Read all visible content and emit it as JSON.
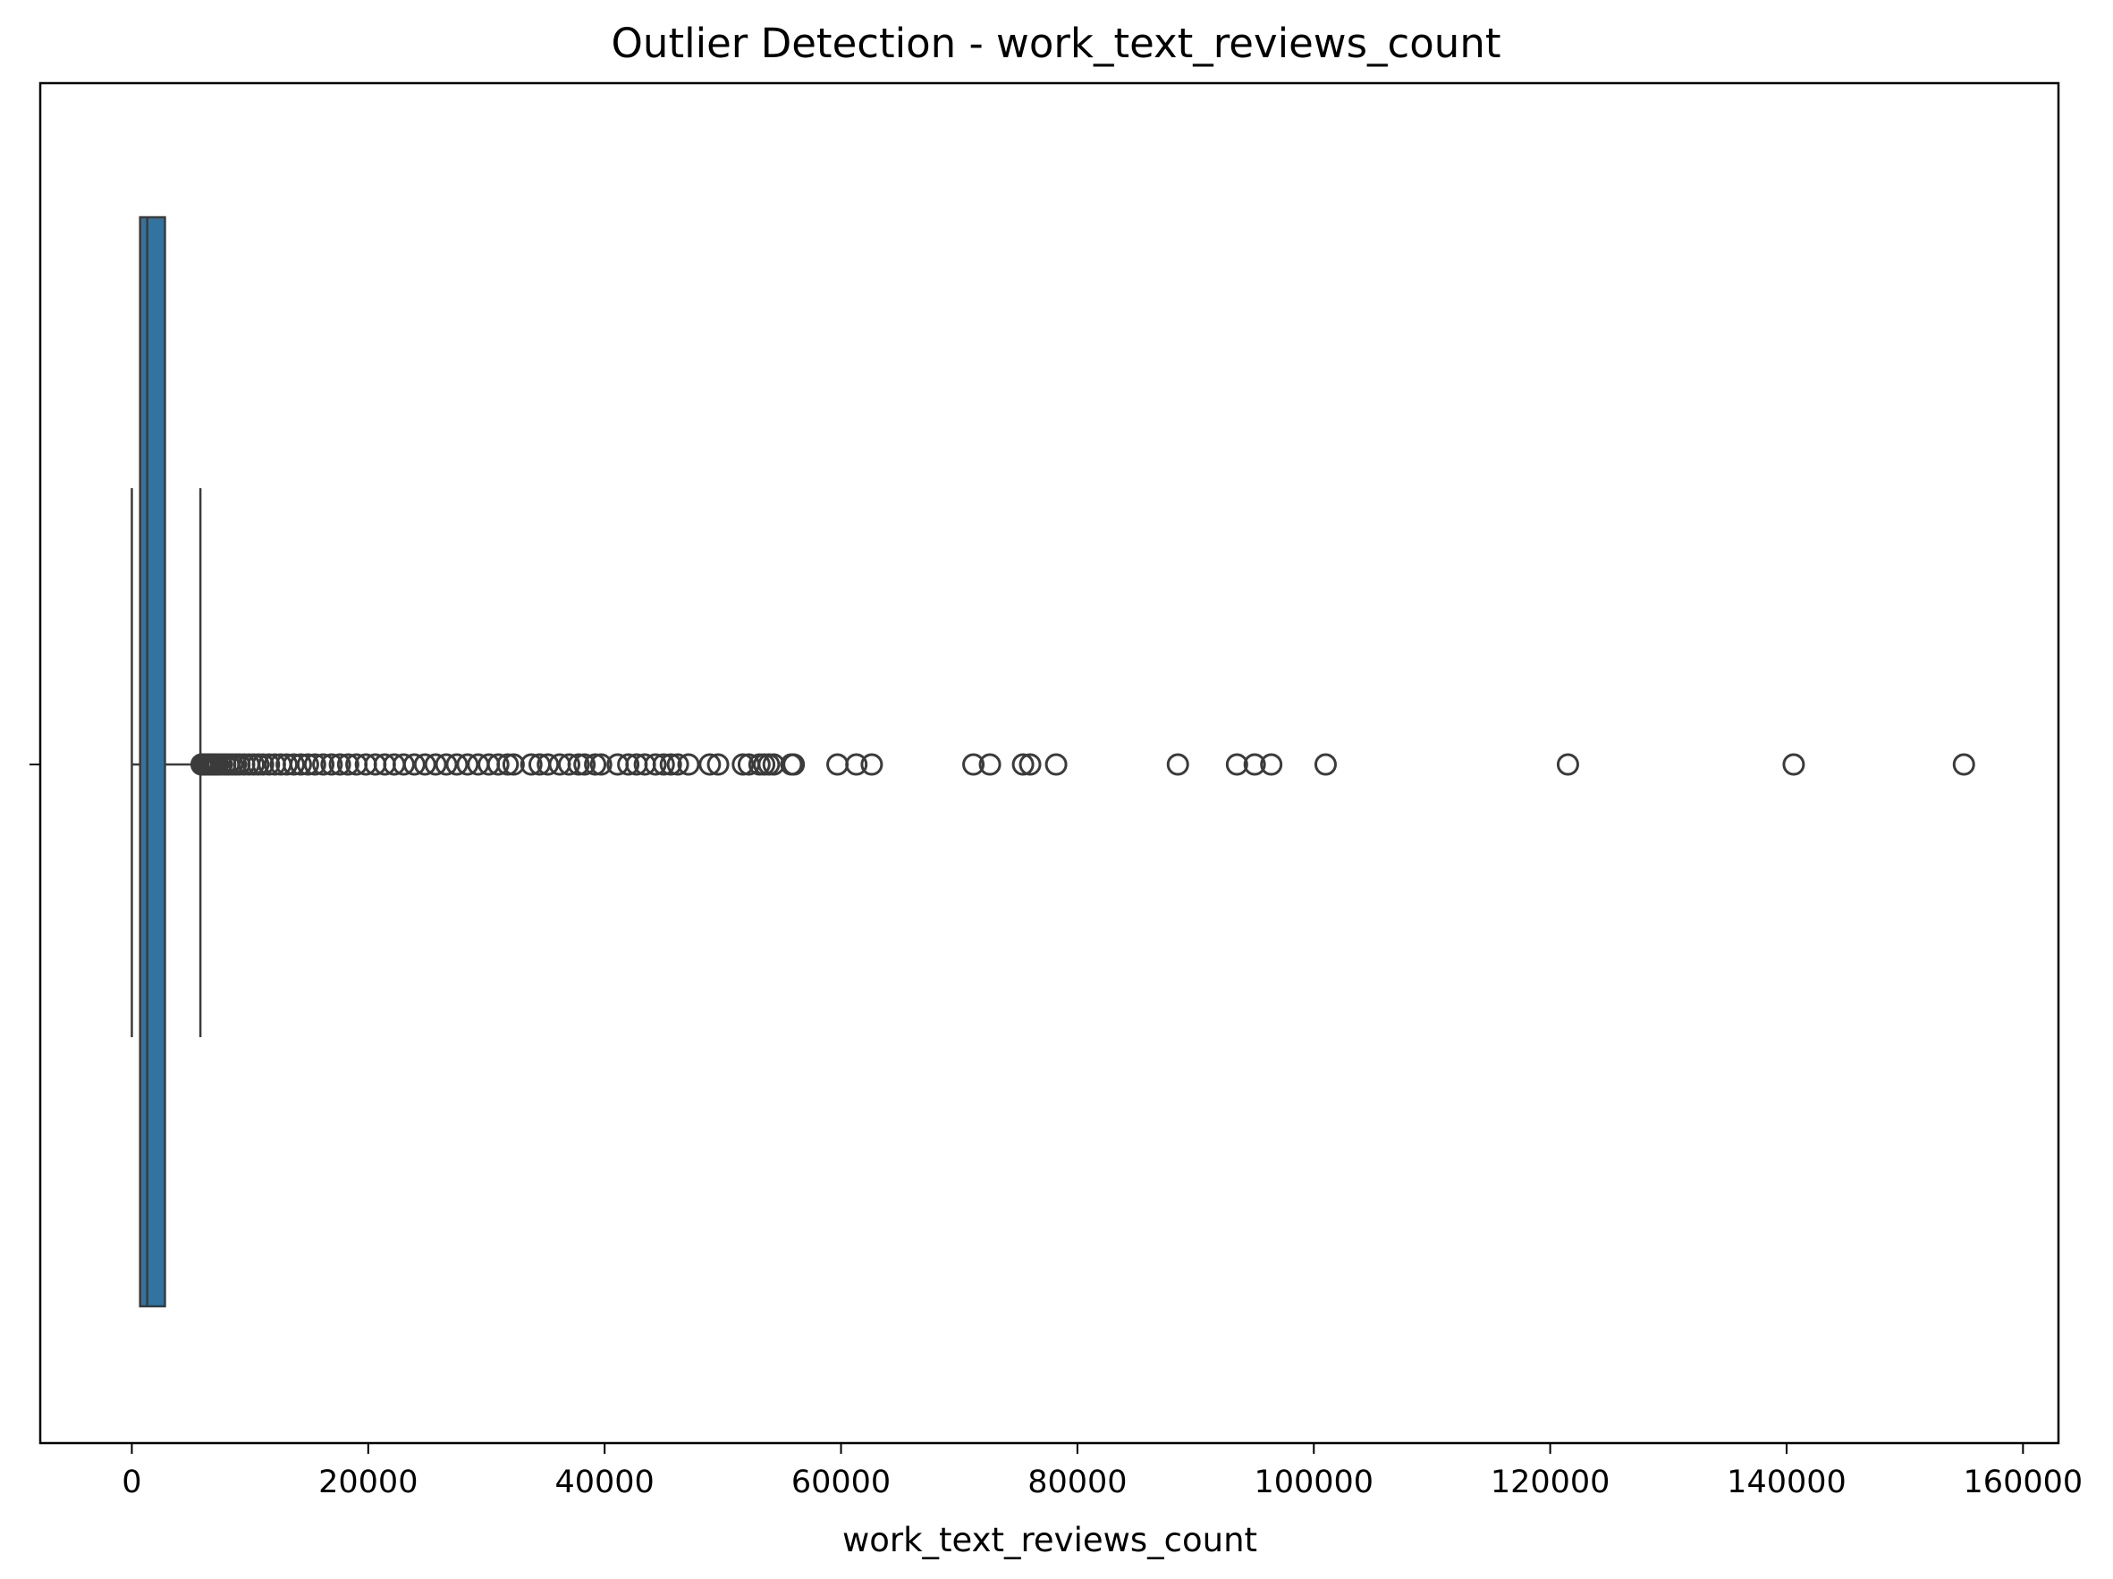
{
  "chart_data": {
    "type": "box",
    "title": "Outlier Detection - work_text_reviews_count",
    "xlabel": "work_text_reviews_count",
    "ylabel": "",
    "xlim": [
      -7750,
      163000
    ],
    "xticks": [
      0,
      20000,
      40000,
      60000,
      80000,
      100000,
      120000,
      140000,
      160000
    ],
    "xtick_labels": [
      "0",
      "20000",
      "40000",
      "60000",
      "80000",
      "100000",
      "120000",
      "140000",
      "160000"
    ],
    "grid": false,
    "orientation": "horizontal",
    "box": {
      "whisker_low": 0,
      "q1": 700,
      "median": 1300,
      "q3": 2800,
      "whisker_high": 5800,
      "color": "#3274a1",
      "edge_color": "#3b3b3b"
    },
    "outliers": [
      5900,
      6100,
      6300,
      6500,
      6700,
      6900,
      7100,
      7300,
      7600,
      7900,
      8200,
      8500,
      8800,
      9100,
      9500,
      9900,
      10300,
      10700,
      11100,
      11600,
      12100,
      12600,
      13100,
      13700,
      14300,
      14900,
      15500,
      16200,
      16900,
      17600,
      18300,
      19000,
      19800,
      20600,
      21400,
      22200,
      23000,
      23900,
      24800,
      25700,
      26600,
      27500,
      28400,
      29300,
      30200,
      31000,
      31800,
      32300,
      33800,
      34500,
      35200,
      36200,
      37000,
      37800,
      38300,
      39200,
      39700,
      41100,
      42000,
      42700,
      43400,
      44300,
      45000,
      45600,
      46200,
      47100,
      48900,
      49600,
      51700,
      52200,
      53100,
      53500,
      53900,
      54300,
      55800,
      56000,
      59700,
      61300,
      62600,
      71200,
      72600,
      75400,
      76000,
      78200,
      88500,
      93500,
      95000,
      96400,
      101000,
      121500,
      140600,
      155000
    ]
  }
}
